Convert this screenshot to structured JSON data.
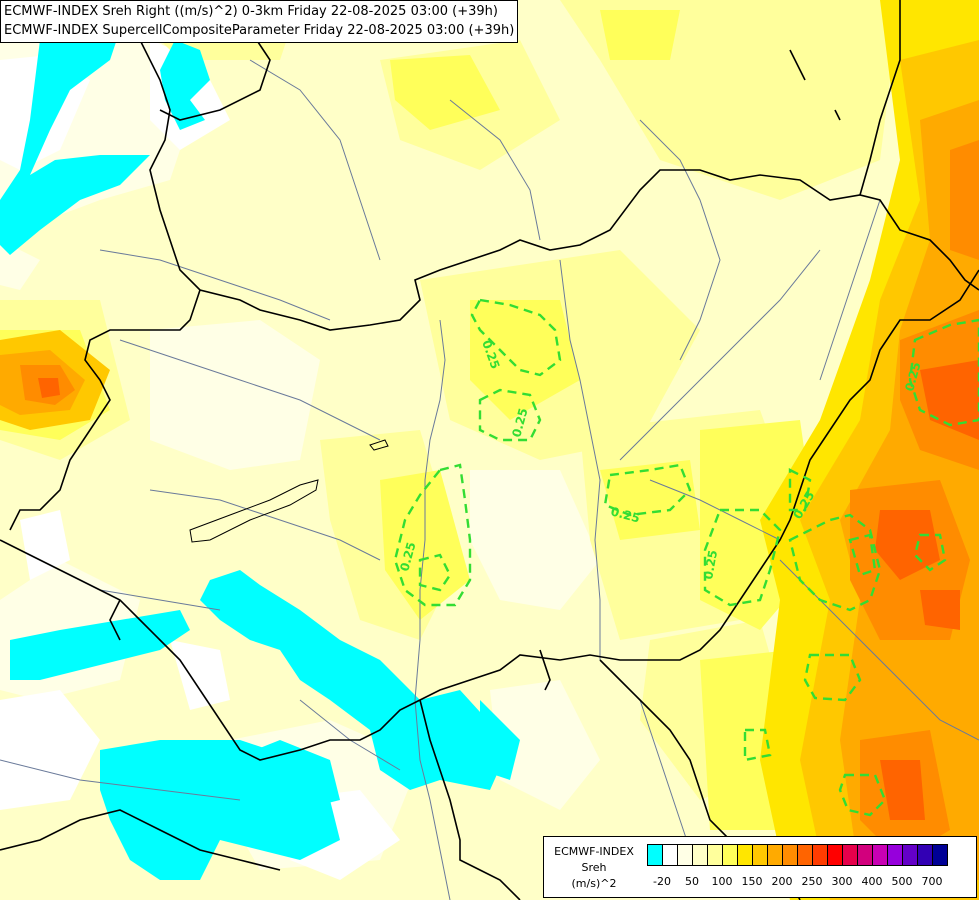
{
  "titles": {
    "line1": "ECMWF-INDEX Sreh Right ((m/s)^2) 0-3km Friday 22-08-2025 03:00 (+39h)",
    "line2": "ECMWF-INDEX SupercellCompositeParameter Friday 22-08-2025 03:00 (+39h)"
  },
  "legend": {
    "line1": "ECMWF-INDEX",
    "line2": "Sreh",
    "line3": "(m/s)^2",
    "colors": [
      "#00ffff",
      "#ffffff",
      "#ffffe6",
      "#ffffc8",
      "#ffff9c",
      "#ffff5a",
      "#ffe600",
      "#ffc800",
      "#ffaa00",
      "#ff8c00",
      "#ff6400",
      "#ff3c00",
      "#ff0000",
      "#e6004b",
      "#d2007d",
      "#c800b4",
      "#9600dc",
      "#6400c8",
      "#3200b4",
      "#000096"
    ],
    "ticks": [
      "-20",
      "50",
      "100",
      "150",
      "200",
      "250",
      "300",
      "400",
      "500",
      "700"
    ]
  },
  "contour_labels": [
    "0.25",
    "0.25",
    "0.25",
    "0.25",
    "0.25",
    "0.25",
    "0.25"
  ],
  "colors": {
    "cyan": "#00ffff",
    "contour": "#33dd33",
    "border": "#000000",
    "river": "#6a7a9a"
  }
}
